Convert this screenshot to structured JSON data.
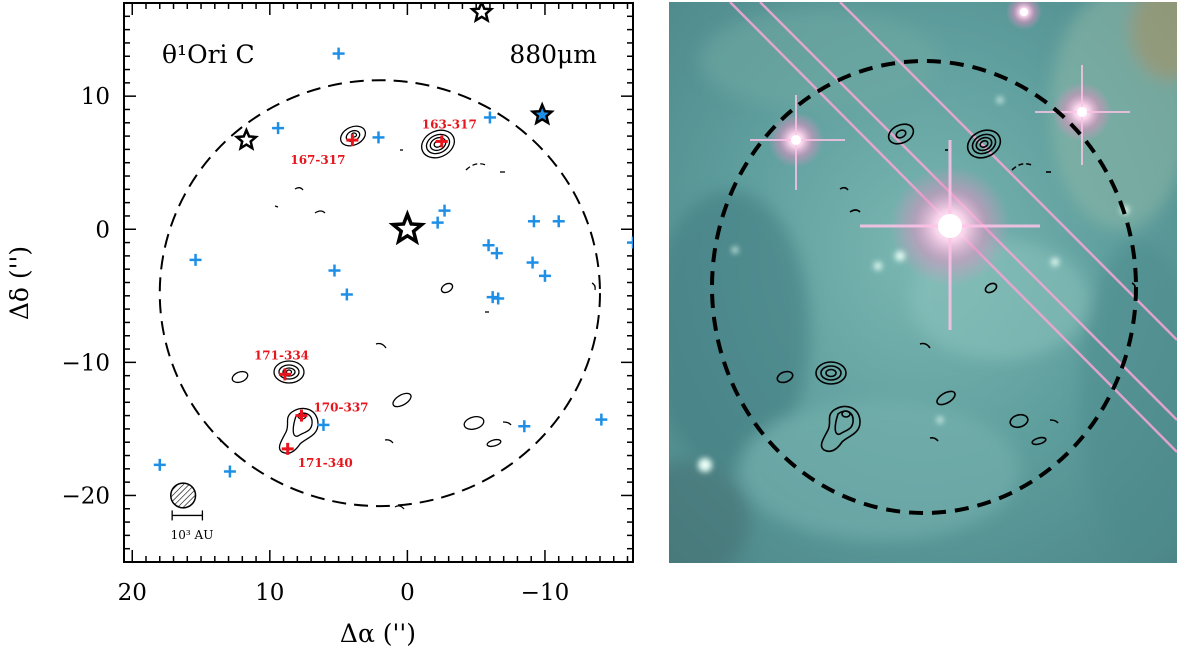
{
  "chart_data": [
    {
      "type": "scatter",
      "title": "",
      "field_label": "θ¹Ori C",
      "wavelength_label": "880μm",
      "xlabel": "Δα ('')",
      "ylabel": "Δδ ('')",
      "xlim": [
        20.6,
        -16.4
      ],
      "ylim": [
        -25,
        17
      ],
      "x_ticks": [
        20,
        10,
        0,
        -10
      ],
      "x_tick_labels": [
        "20",
        "10",
        "0",
        "−10"
      ],
      "y_ticks": [
        10,
        0,
        -10,
        -20
      ],
      "y_tick_labels": [
        "10",
        "0",
        "−10",
        "−20"
      ],
      "primary_beam_circle": {
        "center": [
          2.0,
          -4.8
        ],
        "radius": 16.0
      },
      "stars": [
        {
          "x": 0.0,
          "y": 0.0,
          "size": "large",
          "fill": "white"
        },
        {
          "x": 11.7,
          "y": 6.7,
          "size": "small",
          "fill": "white"
        },
        {
          "x": -5.4,
          "y": 16.3,
          "size": "small",
          "fill": "white"
        },
        {
          "x": -9.8,
          "y": 8.6,
          "size": "small",
          "fill": "#1e8fe6"
        }
      ],
      "blue_crosses": [
        [
          9.4,
          7.6
        ],
        [
          5.0,
          13.2
        ],
        [
          2.1,
          6.9
        ],
        [
          -6.0,
          8.4
        ],
        [
          -2.2,
          0.5
        ],
        [
          -2.7,
          1.4
        ],
        [
          -5.9,
          -1.2
        ],
        [
          -6.5,
          -1.8
        ],
        [
          -9.2,
          0.6
        ],
        [
          -11.0,
          0.6
        ],
        [
          -9.1,
          -2.5
        ],
        [
          -10.0,
          -3.5
        ],
        [
          -16.4,
          -1.0
        ],
        [
          15.4,
          -2.3
        ],
        [
          5.3,
          -3.1
        ],
        [
          4.4,
          -4.9
        ],
        [
          -6.2,
          -5.1
        ],
        [
          -6.6,
          -5.2
        ],
        [
          6.1,
          -14.7
        ],
        [
          -8.5,
          -14.8
        ],
        [
          -14.1,
          -14.3
        ],
        [
          18.0,
          -17.7
        ],
        [
          12.9,
          -18.2
        ]
      ],
      "red_sources": [
        {
          "name": "167-317",
          "x": 4.0,
          "y": 6.7
        },
        {
          "name": "163-317",
          "x": -2.5,
          "y": 6.6
        },
        {
          "name": "171-334",
          "x": 8.9,
          "y": -10.9
        },
        {
          "name": "170-337",
          "x": 7.7,
          "y": -14.0
        },
        {
          "name": "171-340",
          "x": 8.7,
          "y": -16.5
        }
      ],
      "beam": {
        "x": 16.3,
        "y": -20.0,
        "radius": 0.9
      },
      "scale_bar": {
        "x_from": 17.1,
        "x_to": 14.9,
        "y": -21.5,
        "label": "10³ AU"
      },
      "grid": false,
      "legend": "none"
    },
    {
      "type": "image",
      "description_colors": {
        "nebula": "#5fa6a6",
        "star": "#ffd4ee",
        "spike": "#e45fa0"
      },
      "primary_beam_circle": {
        "center": [
          2.0,
          -4.8
        ],
        "radius": 16.0
      }
    }
  ],
  "colors": {
    "blue_cross": "#1e8fe6",
    "red_source": "#e8141c",
    "contour": "#000000",
    "frame": "#000000"
  }
}
